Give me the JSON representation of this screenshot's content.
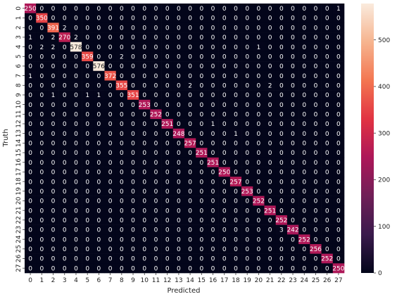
{
  "chart_data": {
    "type": "heatmap",
    "xlabel": "Predicted",
    "ylabel": "Truth",
    "x_categories": [
      "0",
      "1",
      "2",
      "3",
      "4",
      "5",
      "6",
      "7",
      "8",
      "9",
      "10",
      "11",
      "12",
      "13",
      "14",
      "15",
      "16",
      "17",
      "18",
      "19",
      "20",
      "21",
      "22",
      "23",
      "24",
      "25",
      "26",
      "27"
    ],
    "y_categories": [
      "0",
      "1",
      "2",
      "3",
      "4",
      "5",
      "6",
      "7",
      "8",
      "9",
      "10",
      "11",
      "12",
      "13",
      "14",
      "15",
      "16",
      "17",
      "18",
      "19",
      "20",
      "21",
      "22",
      "23",
      "24",
      "25",
      "26",
      "27"
    ],
    "values": [
      [
        250,
        0,
        0,
        0,
        0,
        0,
        0,
        0,
        0,
        0,
        0,
        0,
        0,
        0,
        0,
        0,
        0,
        0,
        0,
        0,
        0,
        0,
        0,
        0,
        0,
        0,
        0,
        1
      ],
      [
        0,
        350,
        0,
        0,
        0,
        0,
        0,
        0,
        0,
        0,
        0,
        0,
        0,
        0,
        0,
        0,
        0,
        0,
        0,
        0,
        0,
        0,
        0,
        0,
        0,
        0,
        0,
        0
      ],
      [
        0,
        0,
        391,
        2,
        0,
        0,
        0,
        0,
        0,
        0,
        0,
        0,
        0,
        0,
        0,
        0,
        0,
        0,
        0,
        0,
        0,
        0,
        0,
        0,
        0,
        0,
        0,
        0
      ],
      [
        1,
        0,
        2,
        270,
        2,
        0,
        0,
        0,
        0,
        0,
        0,
        0,
        0,
        0,
        0,
        0,
        0,
        0,
        0,
        0,
        0,
        0,
        0,
        0,
        0,
        0,
        0,
        0
      ],
      [
        0,
        2,
        2,
        0,
        578,
        0,
        0,
        0,
        0,
        0,
        0,
        0,
        0,
        0,
        0,
        0,
        0,
        0,
        0,
        0,
        1,
        0,
        0,
        0,
        0,
        0,
        0,
        0
      ],
      [
        0,
        0,
        0,
        0,
        0,
        359,
        0,
        0,
        2,
        0,
        0,
        0,
        0,
        0,
        0,
        0,
        0,
        0,
        0,
        0,
        0,
        0,
        0,
        0,
        0,
        0,
        0,
        0
      ],
      [
        0,
        0,
        0,
        0,
        0,
        0,
        576,
        0,
        0,
        0,
        0,
        0,
        0,
        0,
        0,
        0,
        0,
        0,
        0,
        0,
        0,
        0,
        0,
        0,
        0,
        0,
        0,
        0
      ],
      [
        1,
        0,
        0,
        0,
        0,
        0,
        0,
        372,
        0,
        0,
        0,
        0,
        0,
        0,
        0,
        0,
        0,
        0,
        0,
        0,
        0,
        0,
        0,
        0,
        0,
        0,
        0,
        0
      ],
      [
        0,
        0,
        0,
        0,
        0,
        0,
        0,
        0,
        355,
        0,
        0,
        0,
        0,
        0,
        2,
        0,
        0,
        0,
        0,
        0,
        0,
        2,
        0,
        0,
        0,
        0,
        0,
        0
      ],
      [
        0,
        0,
        1,
        0,
        0,
        1,
        1,
        0,
        0,
        351,
        0,
        0,
        0,
        0,
        0,
        0,
        0,
        0,
        0,
        0,
        0,
        0,
        0,
        0,
        0,
        0,
        0,
        0
      ],
      [
        0,
        0,
        0,
        0,
        0,
        0,
        0,
        0,
        0,
        0,
        253,
        0,
        0,
        0,
        0,
        0,
        0,
        0,
        0,
        0,
        0,
        0,
        0,
        0,
        0,
        0,
        0,
        0
      ],
      [
        0,
        0,
        0,
        0,
        0,
        0,
        0,
        0,
        0,
        0,
        0,
        252,
        0,
        0,
        0,
        0,
        0,
        0,
        0,
        0,
        0,
        0,
        0,
        0,
        0,
        0,
        0,
        0
      ],
      [
        0,
        0,
        0,
        0,
        0,
        0,
        0,
        0,
        0,
        0,
        0,
        0,
        251,
        0,
        0,
        0,
        1,
        0,
        0,
        0,
        0,
        0,
        0,
        0,
        0,
        0,
        0,
        0
      ],
      [
        0,
        0,
        0,
        0,
        0,
        0,
        0,
        0,
        0,
        0,
        0,
        0,
        0,
        248,
        0,
        0,
        0,
        0,
        1,
        0,
        0,
        0,
        0,
        0,
        0,
        0,
        0,
        0
      ],
      [
        0,
        0,
        0,
        0,
        0,
        0,
        0,
        0,
        0,
        0,
        0,
        0,
        0,
        0,
        257,
        0,
        0,
        0,
        0,
        0,
        0,
        0,
        0,
        0,
        0,
        0,
        0,
        0
      ],
      [
        0,
        0,
        0,
        0,
        0,
        0,
        0,
        0,
        0,
        0,
        0,
        0,
        0,
        0,
        0,
        251,
        0,
        0,
        0,
        0,
        0,
        0,
        0,
        0,
        0,
        0,
        0,
        0
      ],
      [
        0,
        0,
        0,
        0,
        0,
        0,
        0,
        0,
        0,
        0,
        0,
        0,
        0,
        0,
        0,
        0,
        251,
        0,
        0,
        0,
        0,
        0,
        0,
        0,
        0,
        0,
        0,
        0
      ],
      [
        0,
        0,
        0,
        0,
        0,
        0,
        0,
        0,
        0,
        0,
        0,
        0,
        0,
        0,
        0,
        0,
        0,
        250,
        0,
        0,
        0,
        0,
        0,
        0,
        0,
        0,
        0,
        0
      ],
      [
        0,
        0,
        0,
        0,
        0,
        0,
        0,
        0,
        0,
        0,
        0,
        0,
        0,
        0,
        0,
        0,
        0,
        0,
        257,
        0,
        0,
        0,
        0,
        0,
        0,
        0,
        0,
        0
      ],
      [
        0,
        0,
        0,
        0,
        0,
        0,
        0,
        0,
        0,
        0,
        0,
        0,
        0,
        0,
        0,
        0,
        0,
        0,
        0,
        253,
        0,
        0,
        0,
        0,
        0,
        0,
        0,
        0
      ],
      [
        0,
        0,
        0,
        0,
        0,
        0,
        0,
        0,
        0,
        0,
        0,
        0,
        0,
        0,
        0,
        0,
        0,
        0,
        0,
        0,
        252,
        0,
        0,
        0,
        0,
        0,
        0,
        0
      ],
      [
        0,
        0,
        0,
        0,
        0,
        0,
        0,
        0,
        0,
        0,
        0,
        0,
        0,
        0,
        0,
        0,
        0,
        0,
        0,
        0,
        0,
        251,
        0,
        0,
        0,
        0,
        0,
        0
      ],
      [
        0,
        0,
        0,
        0,
        0,
        0,
        0,
        0,
        0,
        0,
        0,
        0,
        0,
        0,
        0,
        0,
        0,
        0,
        0,
        0,
        0,
        0,
        252,
        0,
        0,
        0,
        0,
        0
      ],
      [
        0,
        0,
        0,
        0,
        0,
        0,
        0,
        0,
        0,
        0,
        0,
        0,
        0,
        0,
        0,
        0,
        0,
        0,
        0,
        0,
        0,
        0,
        3,
        242,
        0,
        0,
        0,
        0
      ],
      [
        0,
        0,
        0,
        0,
        0,
        0,
        0,
        0,
        0,
        0,
        0,
        0,
        0,
        0,
        0,
        0,
        0,
        0,
        0,
        0,
        0,
        0,
        0,
        0,
        252,
        0,
        0,
        0
      ],
      [
        0,
        0,
        0,
        0,
        0,
        0,
        0,
        0,
        0,
        0,
        0,
        0,
        0,
        0,
        0,
        0,
        0,
        0,
        0,
        0,
        0,
        0,
        0,
        0,
        0,
        256,
        0,
        0
      ],
      [
        0,
        0,
        0,
        0,
        0,
        0,
        0,
        0,
        0,
        0,
        0,
        0,
        0,
        0,
        0,
        0,
        0,
        0,
        0,
        0,
        0,
        0,
        0,
        0,
        0,
        0,
        252,
        0
      ],
      [
        0,
        0,
        0,
        0,
        0,
        0,
        0,
        0,
        0,
        0,
        0,
        0,
        0,
        0,
        0,
        0,
        0,
        0,
        0,
        0,
        0,
        0,
        0,
        0,
        0,
        0,
        0,
        250
      ]
    ],
    "colorbar": {
      "range": [
        0,
        578
      ],
      "ticks": [
        0,
        100,
        200,
        300,
        400,
        500
      ],
      "colormap": "rocket",
      "colors": [
        "#03051a",
        "#3a1a4c",
        "#701f57",
        "#ad1759",
        "#e13342",
        "#f37651",
        "#f6b48f",
        "#faebdd"
      ]
    },
    "annotate": true,
    "grid": false
  }
}
